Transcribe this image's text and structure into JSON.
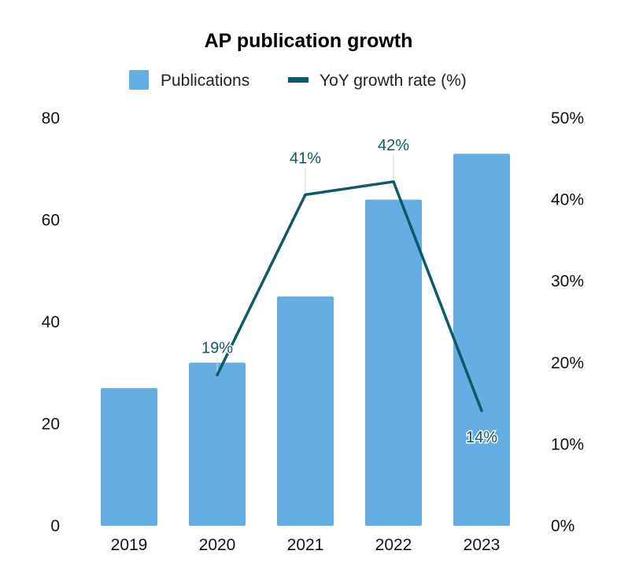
{
  "chart_data": {
    "type": "bar",
    "title": "AP publication growth",
    "categories": [
      "2019",
      "2020",
      "2021",
      "2022",
      "2023"
    ],
    "series": [
      {
        "name": "Publications",
        "kind": "bar",
        "axis": "left",
        "color": "#64AEE3",
        "values": [
          27,
          32,
          45,
          64,
          73
        ]
      },
      {
        "name": "YoY growth rate (%)",
        "kind": "line",
        "axis": "right",
        "color": "#0B5C68",
        "values": [
          null,
          18.5,
          40.6,
          42.2,
          14.1
        ],
        "data_labels": [
          null,
          "19%",
          "41%",
          "42%",
          "14%"
        ]
      }
    ],
    "y_left": {
      "min": 0,
      "max": 80,
      "ticks": [
        "0",
        "20",
        "40",
        "60",
        "80"
      ]
    },
    "y_right": {
      "min": 0,
      "max": 50,
      "ticks": [
        "0%",
        "10%",
        "20%",
        "30%",
        "40%",
        "50%"
      ]
    },
    "xlabel": "",
    "ylabel": "",
    "grid": false,
    "legend": "top-center"
  }
}
